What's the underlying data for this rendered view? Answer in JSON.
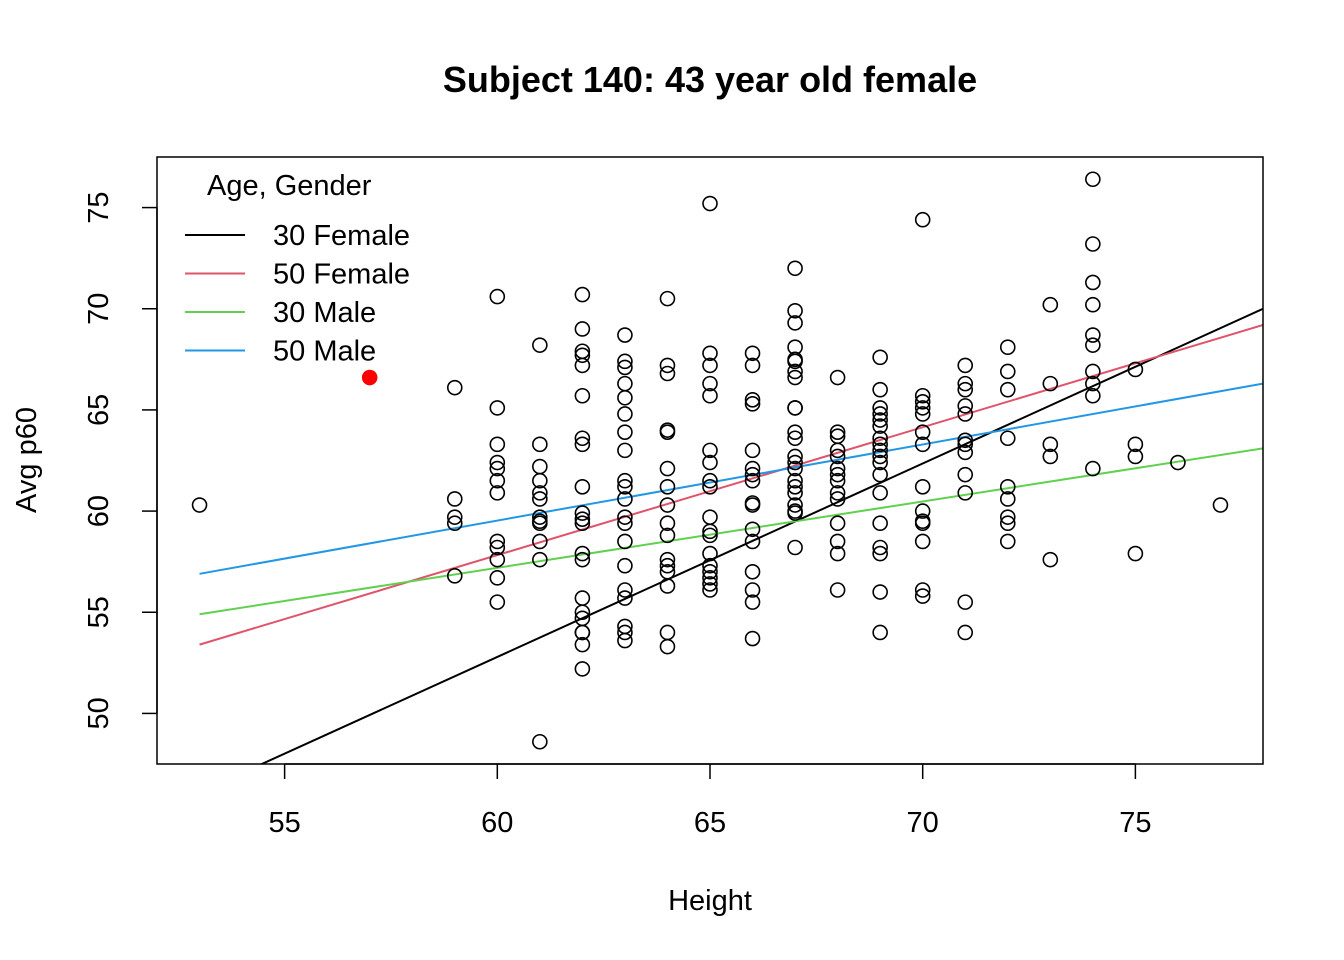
{
  "chart_data": {
    "type": "scatter",
    "title": "Subject 140: 43 year old female",
    "xlabel": "Height",
    "ylabel": "Avg p60",
    "xlim": [
      52,
      78
    ],
    "ylim": [
      47.5,
      77.5
    ],
    "x_ticks": [
      55,
      60,
      65,
      70,
      75
    ],
    "y_ticks": [
      50,
      55,
      60,
      65,
      70,
      75
    ],
    "grid": false,
    "legend": {
      "title": "Age, Gender",
      "placement": "top-left",
      "entries": [
        {
          "label": "30 Female",
          "color": "#000000"
        },
        {
          "label": "50 Female",
          "color": "#DF536B"
        },
        {
          "label": "30 Male",
          "color": "#61D04F"
        },
        {
          "label": "50 Male",
          "color": "#2297E6"
        }
      ]
    },
    "series": [
      {
        "kind": "points",
        "marker": "open-circle",
        "color": "#000000",
        "points": [
          [
            53,
            60.3
          ],
          [
            59,
            66.1
          ],
          [
            59,
            60.6
          ],
          [
            59,
            59.7
          ],
          [
            59,
            59.4
          ],
          [
            59,
            56.8
          ],
          [
            60,
            70.6
          ],
          [
            60,
            65.1
          ],
          [
            60,
            63.3
          ],
          [
            60,
            62.4
          ],
          [
            60,
            62.1
          ],
          [
            60,
            61.5
          ],
          [
            60,
            60.9
          ],
          [
            60,
            58.5
          ],
          [
            60,
            58.2
          ],
          [
            60,
            57.6
          ],
          [
            60,
            56.7
          ],
          [
            60,
            55.5
          ],
          [
            61,
            68.2
          ],
          [
            61,
            63.3
          ],
          [
            61,
            62.2
          ],
          [
            61,
            61.5
          ],
          [
            61,
            60.9
          ],
          [
            61,
            60.6
          ],
          [
            61,
            59.7
          ],
          [
            61,
            59.5
          ],
          [
            61,
            59.4
          ],
          [
            61,
            58.5
          ],
          [
            61,
            57.6
          ],
          [
            61,
            48.6
          ],
          [
            62,
            70.7
          ],
          [
            62,
            69.0
          ],
          [
            62,
            67.9
          ],
          [
            62,
            67.7
          ],
          [
            62,
            67.2
          ],
          [
            62,
            65.7
          ],
          [
            62,
            63.6
          ],
          [
            62,
            63.3
          ],
          [
            62,
            61.2
          ],
          [
            62,
            59.9
          ],
          [
            62,
            59.6
          ],
          [
            62,
            59.4
          ],
          [
            62,
            57.9
          ],
          [
            62,
            57.6
          ],
          [
            62,
            55.7
          ],
          [
            62,
            55.0
          ],
          [
            62,
            54.7
          ],
          [
            62,
            54.0
          ],
          [
            62,
            54.0
          ],
          [
            62,
            53.4
          ],
          [
            62,
            52.2
          ],
          [
            63,
            68.7
          ],
          [
            63,
            67.4
          ],
          [
            63,
            67.1
          ],
          [
            63,
            66.3
          ],
          [
            63,
            65.6
          ],
          [
            63,
            64.8
          ],
          [
            63,
            63.9
          ],
          [
            63,
            63.0
          ],
          [
            63,
            61.5
          ],
          [
            63,
            61.2
          ],
          [
            63,
            60.6
          ],
          [
            63,
            59.7
          ],
          [
            63,
            59.4
          ],
          [
            63,
            58.5
          ],
          [
            63,
            57.3
          ],
          [
            63,
            56.1
          ],
          [
            63,
            55.7
          ],
          [
            63,
            54.3
          ],
          [
            63,
            54.0
          ],
          [
            63,
            53.6
          ],
          [
            64,
            70.5
          ],
          [
            64,
            67.2
          ],
          [
            64,
            66.8
          ],
          [
            64,
            64.0
          ],
          [
            64,
            63.9
          ],
          [
            64,
            62.1
          ],
          [
            64,
            61.2
          ],
          [
            64,
            60.3
          ],
          [
            64,
            59.4
          ],
          [
            64,
            58.8
          ],
          [
            64,
            57.6
          ],
          [
            64,
            57.3
          ],
          [
            64,
            57.0
          ],
          [
            64,
            56.3
          ],
          [
            64,
            54.0
          ],
          [
            64,
            53.3
          ],
          [
            65,
            75.2
          ],
          [
            65,
            67.8
          ],
          [
            65,
            67.2
          ],
          [
            65,
            66.3
          ],
          [
            65,
            65.7
          ],
          [
            65,
            63.0
          ],
          [
            65,
            62.4
          ],
          [
            65,
            61.5
          ],
          [
            65,
            61.2
          ],
          [
            65,
            59.7
          ],
          [
            65,
            59.0
          ],
          [
            65,
            58.8
          ],
          [
            65,
            57.9
          ],
          [
            65,
            57.3
          ],
          [
            65,
            57.0
          ],
          [
            65,
            56.7
          ],
          [
            65,
            56.4
          ],
          [
            65,
            56.1
          ],
          [
            66,
            67.8
          ],
          [
            66,
            67.2
          ],
          [
            66,
            65.5
          ],
          [
            66,
            65.3
          ],
          [
            66,
            63.0
          ],
          [
            66,
            62.1
          ],
          [
            66,
            61.8
          ],
          [
            66,
            61.5
          ],
          [
            66,
            60.4
          ],
          [
            66,
            60.3
          ],
          [
            66,
            59.1
          ],
          [
            66,
            58.5
          ],
          [
            66,
            57.0
          ],
          [
            66,
            56.1
          ],
          [
            66,
            55.5
          ],
          [
            66,
            53.7
          ],
          [
            67,
            72.0
          ],
          [
            67,
            69.9
          ],
          [
            67,
            69.3
          ],
          [
            67,
            68.1
          ],
          [
            67,
            67.5
          ],
          [
            67,
            67.4
          ],
          [
            67,
            66.9
          ],
          [
            67,
            66.6
          ],
          [
            67,
            65.1
          ],
          [
            67,
            65.1
          ],
          [
            67,
            63.9
          ],
          [
            67,
            63.6
          ],
          [
            67,
            62.7
          ],
          [
            67,
            62.4
          ],
          [
            67,
            62.1
          ],
          [
            67,
            61.5
          ],
          [
            67,
            61.2
          ],
          [
            67,
            60.9
          ],
          [
            67,
            60.3
          ],
          [
            67,
            60.0
          ],
          [
            67,
            59.9
          ],
          [
            67,
            58.2
          ],
          [
            68,
            66.6
          ],
          [
            68,
            63.9
          ],
          [
            68,
            63.7
          ],
          [
            68,
            63.0
          ],
          [
            68,
            62.7
          ],
          [
            68,
            62.1
          ],
          [
            68,
            61.8
          ],
          [
            68,
            61.5
          ],
          [
            68,
            60.9
          ],
          [
            68,
            60.6
          ],
          [
            68,
            59.4
          ],
          [
            68,
            58.5
          ],
          [
            68,
            57.9
          ],
          [
            68,
            56.1
          ],
          [
            69,
            67.6
          ],
          [
            69,
            66.0
          ],
          [
            69,
            65.1
          ],
          [
            69,
            64.8
          ],
          [
            69,
            64.5
          ],
          [
            69,
            64.2
          ],
          [
            69,
            63.6
          ],
          [
            69,
            63.3
          ],
          [
            69,
            63.0
          ],
          [
            69,
            62.7
          ],
          [
            69,
            62.4
          ],
          [
            69,
            61.8
          ],
          [
            69,
            60.9
          ],
          [
            69,
            59.4
          ],
          [
            69,
            58.2
          ],
          [
            69,
            57.9
          ],
          [
            69,
            56.0
          ],
          [
            69,
            54.0
          ],
          [
            70,
            74.4
          ],
          [
            70,
            65.7
          ],
          [
            70,
            65.4
          ],
          [
            70,
            65.1
          ],
          [
            70,
            64.8
          ],
          [
            70,
            63.9
          ],
          [
            70,
            63.3
          ],
          [
            70,
            61.2
          ],
          [
            70,
            60.0
          ],
          [
            70,
            59.5
          ],
          [
            70,
            59.4
          ],
          [
            70,
            58.5
          ],
          [
            70,
            56.1
          ],
          [
            70,
            55.8
          ],
          [
            71,
            67.2
          ],
          [
            71,
            66.3
          ],
          [
            71,
            66.0
          ],
          [
            71,
            65.2
          ],
          [
            71,
            64.8
          ],
          [
            71,
            63.5
          ],
          [
            71,
            63.3
          ],
          [
            71,
            62.9
          ],
          [
            71,
            61.8
          ],
          [
            71,
            60.9
          ],
          [
            71,
            55.5
          ],
          [
            71,
            54.0
          ],
          [
            72,
            68.1
          ],
          [
            72,
            66.9
          ],
          [
            72,
            66.0
          ],
          [
            72,
            63.6
          ],
          [
            72,
            61.2
          ],
          [
            72,
            60.6
          ],
          [
            72,
            59.7
          ],
          [
            72,
            59.4
          ],
          [
            72,
            58.5
          ],
          [
            73,
            70.2
          ],
          [
            73,
            66.3
          ],
          [
            73,
            63.3
          ],
          [
            73,
            62.7
          ],
          [
            73,
            57.6
          ],
          [
            74,
            76.4
          ],
          [
            74,
            73.2
          ],
          [
            74,
            71.3
          ],
          [
            74,
            70.2
          ],
          [
            74,
            68.7
          ],
          [
            74,
            68.2
          ],
          [
            74,
            66.9
          ],
          [
            74,
            66.3
          ],
          [
            74,
            65.7
          ],
          [
            74,
            62.1
          ],
          [
            75,
            67.0
          ],
          [
            75,
            63.3
          ],
          [
            75,
            62.7
          ],
          [
            75,
            57.9
          ],
          [
            76,
            62.4
          ],
          [
            77,
            60.3
          ]
        ]
      },
      {
        "kind": "highlight",
        "marker": "filled-circle",
        "color": "#FF0000",
        "points": [
          [
            57,
            66.6
          ]
        ]
      },
      {
        "kind": "line",
        "name": "30 Female",
        "color": "#000000",
        "x": [
          53,
          78
        ],
        "y": [
          46.1,
          70.0
        ]
      },
      {
        "kind": "line",
        "name": "50 Female",
        "color": "#DF536B",
        "x": [
          53,
          78
        ],
        "y": [
          53.4,
          69.2
        ]
      },
      {
        "kind": "line",
        "name": "30 Male",
        "color": "#61D04F",
        "x": [
          53,
          78
        ],
        "y": [
          54.9,
          63.1
        ]
      },
      {
        "kind": "line",
        "name": "50 Male",
        "color": "#2297E6",
        "x": [
          53,
          78
        ],
        "y": [
          56.9,
          66.3
        ]
      }
    ]
  }
}
